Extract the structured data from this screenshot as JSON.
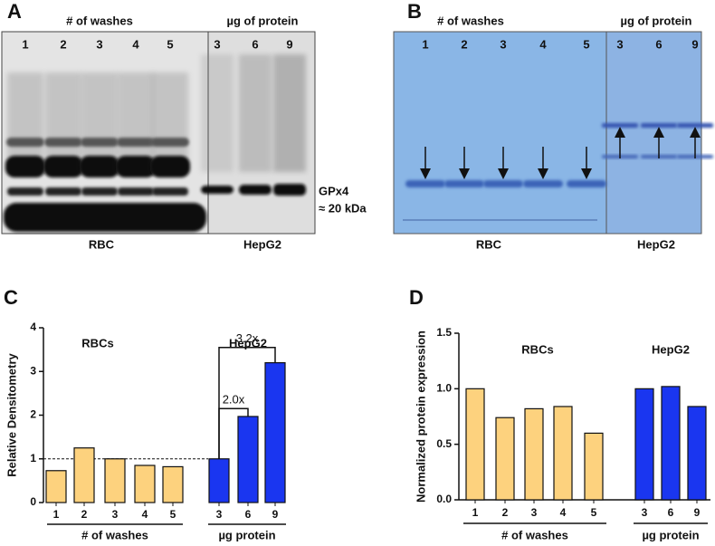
{
  "blots": [
    {
      "panel": "A",
      "header_left": "# of washes",
      "header_right": "µg of protein",
      "lanes_left": [
        "1",
        "2",
        "3",
        "4",
        "5"
      ],
      "lanes_right": [
        "3",
        "6",
        "9"
      ],
      "marker": [
        "GPx4",
        "≈ 20 kDa"
      ],
      "footer_left": "RBC",
      "footer_right": "HepG2"
    },
    {
      "panel": "B",
      "header_left": "# of washes",
      "header_right": "µg of protein",
      "lanes_left": [
        "1",
        "2",
        "3",
        "4",
        "5"
      ],
      "lanes_right": [
        "3",
        "6",
        "9"
      ],
      "footer_left": "RBC",
      "footer_right": "HepG2"
    }
  ],
  "chart_data": [
    {
      "type": "bar",
      "panel": "C",
      "y_label": "Relative Densitometry",
      "ylim": [
        0,
        4
      ],
      "yticks": [
        0,
        1,
        2,
        3,
        4
      ],
      "reference_line": 1,
      "groups": [
        {
          "title": "RBCs",
          "categories": [
            "1",
            "2",
            "3",
            "4",
            "5"
          ],
          "values": [
            0.73,
            1.25,
            1.0,
            0.85,
            0.82
          ],
          "color": "#fdd27e",
          "axis_label": "# of washes"
        },
        {
          "title": "HepG2",
          "categories": [
            "3",
            "6",
            "9"
          ],
          "values": [
            1.0,
            1.97,
            3.2
          ],
          "color": "#1a36f0",
          "axis_label": "µg protein"
        }
      ],
      "annotations": [
        "2.0x",
        "3.2x"
      ]
    },
    {
      "type": "bar",
      "panel": "D",
      "y_label": "Normalized protein expression",
      "ylim": [
        0,
        1.5
      ],
      "yticks": [
        {
          "value": 0,
          "label": "0.0"
        },
        {
          "value": 0.5,
          "label": "0.5"
        },
        {
          "value": 1,
          "label": "1.0"
        },
        {
          "value": 1.5,
          "label": "1.5"
        }
      ],
      "groups": [
        {
          "title": "RBCs",
          "categories": [
            "1",
            "2",
            "3",
            "4",
            "5"
          ],
          "values": [
            1.0,
            0.74,
            0.82,
            0.84,
            0.6
          ],
          "color": "#fdd27e",
          "axis_label": "# of washes"
        },
        {
          "title": "HepG2",
          "categories": [
            "3",
            "6",
            "9"
          ],
          "values": [
            1.0,
            1.02,
            0.84
          ],
          "color": "#1a36f0",
          "axis_label": "µg protein"
        }
      ]
    }
  ]
}
